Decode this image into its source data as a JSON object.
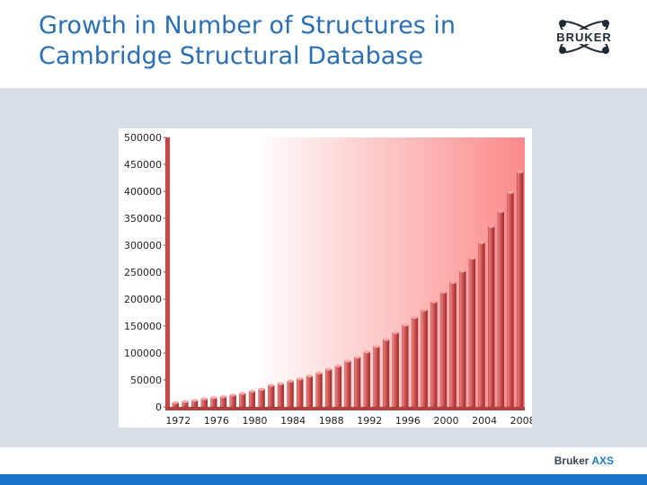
{
  "header": {
    "title_line1": "Growth in Number of Structures in",
    "title_line2": "Cambridge Structural Database"
  },
  "logo": {
    "text": "BRUKER",
    "icon": "atom-icon"
  },
  "footer": {
    "brand_name": "Bruker",
    "brand_product": "AXS"
  },
  "colors": {
    "title": "#2a6fb4",
    "band": "#d7dee6",
    "bar_fill": "#c94545",
    "plot_gradient_end": "#fb8a8a",
    "bottom_bar": "#1a73c8"
  },
  "chart_data": {
    "type": "bar",
    "title": "",
    "xlabel": "",
    "ylabel": "",
    "ylim": [
      0,
      500000
    ],
    "yticks": [
      0,
      50000,
      100000,
      150000,
      200000,
      250000,
      300000,
      350000,
      400000,
      450000,
      500000
    ],
    "xtick_labels": [
      "1972",
      "1976",
      "1980",
      "1984",
      "1988",
      "1992",
      "1996",
      "2000",
      "2004",
      "2008"
    ],
    "categories": [
      1972,
      1973,
      1974,
      1975,
      1976,
      1977,
      1978,
      1979,
      1980,
      1981,
      1982,
      1983,
      1984,
      1985,
      1986,
      1987,
      1988,
      1989,
      1990,
      1991,
      1992,
      1993,
      1994,
      1995,
      1996,
      1997,
      1998,
      1999,
      2000,
      2001,
      2002,
      2003,
      2004,
      2005,
      2006,
      2007,
      2008
    ],
    "values": [
      8000,
      10000,
      12000,
      15000,
      17000,
      19000,
      22000,
      25000,
      29000,
      33000,
      40000,
      43000,
      48000,
      52000,
      57000,
      63000,
      70000,
      76000,
      85000,
      92000,
      102000,
      112000,
      125000,
      138000,
      152000,
      166000,
      180000,
      195000,
      213000,
      231000,
      252000,
      276000,
      305000,
      335000,
      363000,
      398000,
      436000
    ],
    "grid": false,
    "legend": "none"
  }
}
